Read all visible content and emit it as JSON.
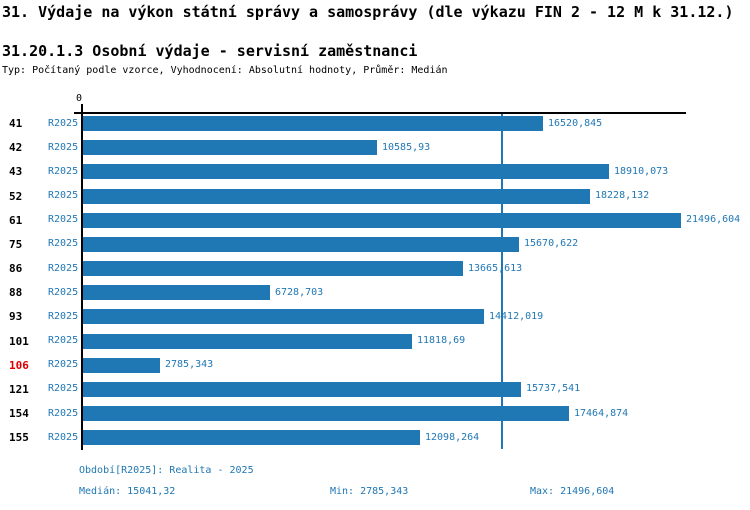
{
  "header": {
    "title": "31. Výdaje na výkon státní správy a samosprávy (dle výkazu FIN 2 - 12 M k 31.12.)",
    "subtitle": "31.20.1.3 Osobní výdaje - servisní zaměstnanci",
    "meta": "Typ: Počítaný podle vzorce, Vyhodnocení: Absolutní hodnoty, Průměr: Medián"
  },
  "chart_data": {
    "type": "bar",
    "orientation": "horizontal",
    "title": "31.20.1.3 Osobní výdaje - servisní zaměstnanci",
    "xlabel": "",
    "ylabel": "",
    "axis": {
      "origin_tick_label": "0",
      "x_max": 21496.604,
      "median_line_value": 15041.32,
      "grid": false
    },
    "series_label": "R2025",
    "categories": [
      "41",
      "42",
      "43",
      "52",
      "61",
      "75",
      "86",
      "88",
      "93",
      "101",
      "106",
      "121",
      "154",
      "155"
    ],
    "values": [
      16520.845,
      10585.93,
      18910.073,
      18228.132,
      21496.604,
      15670.622,
      13665.613,
      6728.703,
      14412.019,
      11818.69,
      2785.343,
      15737.541,
      17464.874,
      12098.264
    ],
    "value_labels": [
      "16520,845",
      "10585,93",
      "18910,073",
      "18228,132",
      "21496,604",
      "15670,622",
      "13665,613",
      "6728,703",
      "14412,019",
      "11818,69",
      "2785,343",
      "15737,541",
      "17464,874",
      "12098,264"
    ],
    "highlighted_category": "106",
    "bar_color": "#1f77b4",
    "highlight_color": "#dd0000",
    "legend": "none"
  },
  "footer": {
    "period": "Období[R2025]: Realita - 2025",
    "median": "Medián: 15041,32",
    "min": "Min: 2785,343",
    "max": "Max: 21496,604"
  },
  "colors": {
    "accent_blue": "#1f77b4",
    "highlight_red": "#dd0000",
    "axis_black": "#000000",
    "background": "#ffffff"
  }
}
